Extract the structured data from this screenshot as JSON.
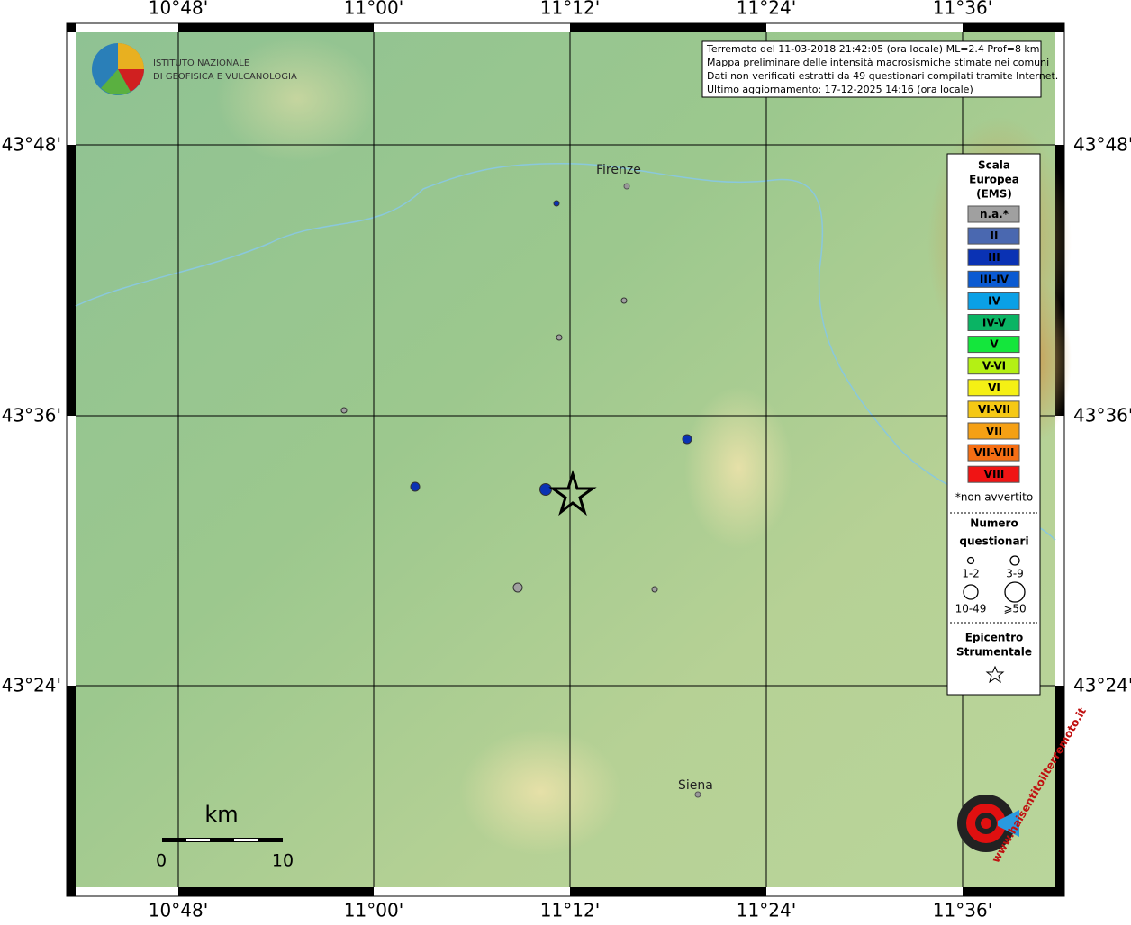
{
  "header": {
    "institute": [
      "ISTITUTO NAZIONALE",
      "DI GEOFISICA E VULCANOLOGIA"
    ]
  },
  "info": [
    "Terremoto del 11-03-2018 21:42:05 (ora locale) ML=2.4 Prof=8 km",
    "Mappa preliminare delle intensità macrosismiche stimate nei comuni",
    "Dati non verificati estratti da 49 questionari compilati tramite Internet.",
    "Ultimo aggiornamento: 17-12-2025 14:16 (ora locale)"
  ],
  "axes": {
    "longitude": [
      "10°48'",
      "11°00'",
      "11°12'",
      "11°24'",
      "11°36'"
    ],
    "latitude": [
      "43°48'",
      "43°36'",
      "43°24'"
    ]
  },
  "places": [
    "Firenze",
    "Siena"
  ],
  "legend": {
    "title": [
      "Scala",
      "Europea",
      "(EMS)"
    ],
    "classes": [
      {
        "label": "n.a.*",
        "color": "#a0a0a0"
      },
      {
        "label": "II",
        "color": "#4a68b0"
      },
      {
        "label": "III",
        "color": "#0a32b4"
      },
      {
        "label": "III-IV",
        "color": "#0a5ad2"
      },
      {
        "label": "IV",
        "color": "#0aa0e6"
      },
      {
        "label": "IV-V",
        "color": "#0ab464"
      },
      {
        "label": "V",
        "color": "#14e63c"
      },
      {
        "label": "V-VI",
        "color": "#b4f014"
      },
      {
        "label": "VI",
        "color": "#f5f014"
      },
      {
        "label": "VI-VII",
        "color": "#f5c814"
      },
      {
        "label": "VII",
        "color": "#f5a014"
      },
      {
        "label": "VII-VIII",
        "color": "#f56e14"
      },
      {
        "label": "VIII",
        "color": "#f01414"
      }
    ],
    "note": "*non avvertito",
    "count_title": [
      "Numero",
      "questionari"
    ],
    "count_classes": [
      "1-2",
      "3-9",
      "10-49",
      "⩾50"
    ],
    "epicenter_title": [
      "Epicentro",
      "Strumentale"
    ]
  },
  "scale": {
    "unit": "km",
    "ticks": [
      0,
      10
    ]
  },
  "logo": "www.haisentitoilterremoto.it"
}
